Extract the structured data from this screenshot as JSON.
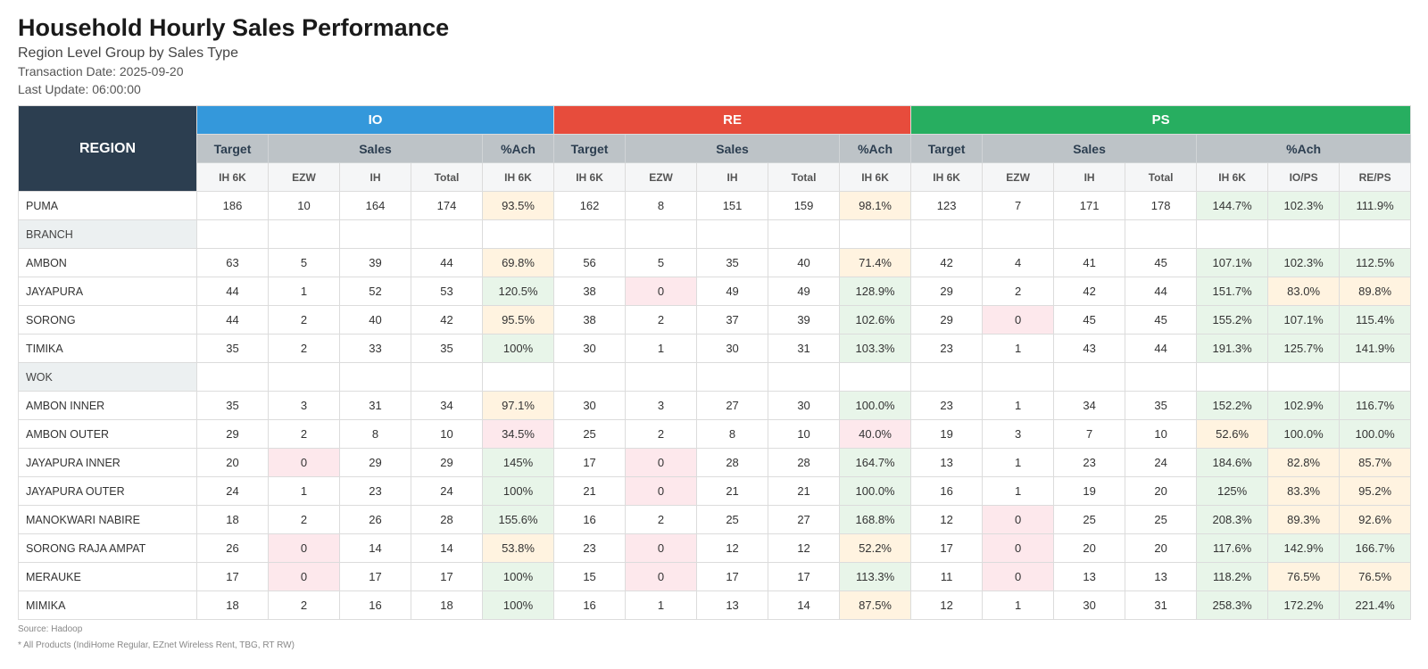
{
  "title": "Household Hourly Sales Performance",
  "subtitle": "Region Level Group by Sales Type",
  "transaction_date": "Transaction Date: 2025-09-20",
  "last_update": "Last Update: 06:00:00",
  "table": {
    "region_header": "REGION",
    "groups": [
      {
        "label": "IO",
        "color": "#3498db"
      },
      {
        "label": "RE",
        "color": "#e74c3c"
      },
      {
        "label": "PS",
        "color": "#27ae60"
      }
    ],
    "sub_headers": [
      "Target",
      "Sales",
      "%Ach"
    ],
    "col_headers": [
      "IH 6K",
      "EZW",
      "IH",
      "Total",
      "IH 6K",
      "IH 6K",
      "EZW",
      "IH",
      "Total",
      "IH 6K",
      "IH 6K",
      "EZW",
      "IH",
      "Total",
      "IH 6K",
      "IO/PS",
      "RE/PS"
    ],
    "rows": [
      {
        "type": "data",
        "name": "PUMA",
        "cells": [
          {
            "v": "186"
          },
          {
            "v": "10"
          },
          {
            "v": "164"
          },
          {
            "v": "174"
          },
          {
            "v": "93.5%",
            "c": "warn"
          },
          {
            "v": "162"
          },
          {
            "v": "8"
          },
          {
            "v": "151"
          },
          {
            "v": "159"
          },
          {
            "v": "98.1%",
            "c": "warn"
          },
          {
            "v": "123"
          },
          {
            "v": "7"
          },
          {
            "v": "171"
          },
          {
            "v": "178"
          },
          {
            "v": "144.7%",
            "c": "good"
          },
          {
            "v": "102.3%",
            "c": "good"
          },
          {
            "v": "111.9%",
            "c": "good"
          }
        ]
      },
      {
        "type": "section",
        "name": "BRANCH"
      },
      {
        "type": "data",
        "name": "AMBON",
        "cells": [
          {
            "v": "63"
          },
          {
            "v": "5"
          },
          {
            "v": "39"
          },
          {
            "v": "44"
          },
          {
            "v": "69.8%",
            "c": "warn"
          },
          {
            "v": "56"
          },
          {
            "v": "5"
          },
          {
            "v": "35"
          },
          {
            "v": "40"
          },
          {
            "v": "71.4%",
            "c": "warn"
          },
          {
            "v": "42"
          },
          {
            "v": "4"
          },
          {
            "v": "41"
          },
          {
            "v": "45"
          },
          {
            "v": "107.1%",
            "c": "good"
          },
          {
            "v": "102.3%",
            "c": "good"
          },
          {
            "v": "112.5%",
            "c": "good"
          }
        ]
      },
      {
        "type": "data",
        "name": "JAYAPURA",
        "cells": [
          {
            "v": "44"
          },
          {
            "v": "1"
          },
          {
            "v": "52"
          },
          {
            "v": "53"
          },
          {
            "v": "120.5%",
            "c": "good"
          },
          {
            "v": "38"
          },
          {
            "v": "0",
            "c": "zero"
          },
          {
            "v": "49"
          },
          {
            "v": "49"
          },
          {
            "v": "128.9%",
            "c": "good"
          },
          {
            "v": "29"
          },
          {
            "v": "2"
          },
          {
            "v": "42"
          },
          {
            "v": "44"
          },
          {
            "v": "151.7%",
            "c": "good"
          },
          {
            "v": "83.0%",
            "c": "warn"
          },
          {
            "v": "89.8%",
            "c": "warn"
          }
        ]
      },
      {
        "type": "data",
        "name": "SORONG",
        "cells": [
          {
            "v": "44"
          },
          {
            "v": "2"
          },
          {
            "v": "40"
          },
          {
            "v": "42"
          },
          {
            "v": "95.5%",
            "c": "warn"
          },
          {
            "v": "38"
          },
          {
            "v": "2"
          },
          {
            "v": "37"
          },
          {
            "v": "39"
          },
          {
            "v": "102.6%",
            "c": "good"
          },
          {
            "v": "29"
          },
          {
            "v": "0",
            "c": "zero"
          },
          {
            "v": "45"
          },
          {
            "v": "45"
          },
          {
            "v": "155.2%",
            "c": "good"
          },
          {
            "v": "107.1%",
            "c": "good"
          },
          {
            "v": "115.4%",
            "c": "good"
          }
        ]
      },
      {
        "type": "data",
        "name": "TIMIKA",
        "cells": [
          {
            "v": "35"
          },
          {
            "v": "2"
          },
          {
            "v": "33"
          },
          {
            "v": "35"
          },
          {
            "v": "100%",
            "c": "good"
          },
          {
            "v": "30"
          },
          {
            "v": "1"
          },
          {
            "v": "30"
          },
          {
            "v": "31"
          },
          {
            "v": "103.3%",
            "c": "good"
          },
          {
            "v": "23"
          },
          {
            "v": "1"
          },
          {
            "v": "43"
          },
          {
            "v": "44"
          },
          {
            "v": "191.3%",
            "c": "good"
          },
          {
            "v": "125.7%",
            "c": "good"
          },
          {
            "v": "141.9%",
            "c": "good"
          }
        ]
      },
      {
        "type": "section",
        "name": "WOK"
      },
      {
        "type": "data",
        "name": "AMBON INNER",
        "cells": [
          {
            "v": "35"
          },
          {
            "v": "3"
          },
          {
            "v": "31"
          },
          {
            "v": "34"
          },
          {
            "v": "97.1%",
            "c": "warn"
          },
          {
            "v": "30"
          },
          {
            "v": "3"
          },
          {
            "v": "27"
          },
          {
            "v": "30"
          },
          {
            "v": "100.0%",
            "c": "good"
          },
          {
            "v": "23"
          },
          {
            "v": "1"
          },
          {
            "v": "34"
          },
          {
            "v": "35"
          },
          {
            "v": "152.2%",
            "c": "good"
          },
          {
            "v": "102.9%",
            "c": "good"
          },
          {
            "v": "116.7%",
            "c": "good"
          }
        ]
      },
      {
        "type": "data",
        "name": "AMBON OUTER",
        "cells": [
          {
            "v": "29"
          },
          {
            "v": "2"
          },
          {
            "v": "8"
          },
          {
            "v": "10"
          },
          {
            "v": "34.5%",
            "c": "bad"
          },
          {
            "v": "25"
          },
          {
            "v": "2"
          },
          {
            "v": "8"
          },
          {
            "v": "10"
          },
          {
            "v": "40.0%",
            "c": "bad"
          },
          {
            "v": "19"
          },
          {
            "v": "3"
          },
          {
            "v": "7"
          },
          {
            "v": "10"
          },
          {
            "v": "52.6%",
            "c": "warn"
          },
          {
            "v": "100.0%",
            "c": "good"
          },
          {
            "v": "100.0%",
            "c": "good"
          }
        ]
      },
      {
        "type": "data",
        "name": "JAYAPURA INNER",
        "cells": [
          {
            "v": "20"
          },
          {
            "v": "0",
            "c": "zero"
          },
          {
            "v": "29"
          },
          {
            "v": "29"
          },
          {
            "v": "145%",
            "c": "good"
          },
          {
            "v": "17"
          },
          {
            "v": "0",
            "c": "zero"
          },
          {
            "v": "28"
          },
          {
            "v": "28"
          },
          {
            "v": "164.7%",
            "c": "good"
          },
          {
            "v": "13"
          },
          {
            "v": "1"
          },
          {
            "v": "23"
          },
          {
            "v": "24"
          },
          {
            "v": "184.6%",
            "c": "good"
          },
          {
            "v": "82.8%",
            "c": "warn"
          },
          {
            "v": "85.7%",
            "c": "warn"
          }
        ]
      },
      {
        "type": "data",
        "name": "JAYAPURA OUTER",
        "cells": [
          {
            "v": "24"
          },
          {
            "v": "1"
          },
          {
            "v": "23"
          },
          {
            "v": "24"
          },
          {
            "v": "100%",
            "c": "good"
          },
          {
            "v": "21"
          },
          {
            "v": "0",
            "c": "zero"
          },
          {
            "v": "21"
          },
          {
            "v": "21"
          },
          {
            "v": "100.0%",
            "c": "good"
          },
          {
            "v": "16"
          },
          {
            "v": "1"
          },
          {
            "v": "19"
          },
          {
            "v": "20"
          },
          {
            "v": "125%",
            "c": "good"
          },
          {
            "v": "83.3%",
            "c": "warn"
          },
          {
            "v": "95.2%",
            "c": "warn"
          }
        ]
      },
      {
        "type": "data",
        "name": "MANOKWARI NABIRE",
        "cells": [
          {
            "v": "18"
          },
          {
            "v": "2"
          },
          {
            "v": "26"
          },
          {
            "v": "28"
          },
          {
            "v": "155.6%",
            "c": "good"
          },
          {
            "v": "16"
          },
          {
            "v": "2"
          },
          {
            "v": "25"
          },
          {
            "v": "27"
          },
          {
            "v": "168.8%",
            "c": "good"
          },
          {
            "v": "12"
          },
          {
            "v": "0",
            "c": "zero"
          },
          {
            "v": "25"
          },
          {
            "v": "25"
          },
          {
            "v": "208.3%",
            "c": "good"
          },
          {
            "v": "89.3%",
            "c": "warn"
          },
          {
            "v": "92.6%",
            "c": "warn"
          }
        ]
      },
      {
        "type": "data",
        "name": "SORONG RAJA AMPAT",
        "cells": [
          {
            "v": "26"
          },
          {
            "v": "0",
            "c": "zero"
          },
          {
            "v": "14"
          },
          {
            "v": "14"
          },
          {
            "v": "53.8%",
            "c": "warn"
          },
          {
            "v": "23"
          },
          {
            "v": "0",
            "c": "zero"
          },
          {
            "v": "12"
          },
          {
            "v": "12"
          },
          {
            "v": "52.2%",
            "c": "warn"
          },
          {
            "v": "17"
          },
          {
            "v": "0",
            "c": "zero"
          },
          {
            "v": "20"
          },
          {
            "v": "20"
          },
          {
            "v": "117.6%",
            "c": "good"
          },
          {
            "v": "142.9%",
            "c": "good"
          },
          {
            "v": "166.7%",
            "c": "good"
          }
        ]
      },
      {
        "type": "data",
        "name": "MERAUKE",
        "cells": [
          {
            "v": "17"
          },
          {
            "v": "0",
            "c": "zero"
          },
          {
            "v": "17"
          },
          {
            "v": "17"
          },
          {
            "v": "100%",
            "c": "good"
          },
          {
            "v": "15"
          },
          {
            "v": "0",
            "c": "zero"
          },
          {
            "v": "17"
          },
          {
            "v": "17"
          },
          {
            "v": "113.3%",
            "c": "good"
          },
          {
            "v": "11"
          },
          {
            "v": "0",
            "c": "zero"
          },
          {
            "v": "13"
          },
          {
            "v": "13"
          },
          {
            "v": "118.2%",
            "c": "good"
          },
          {
            "v": "76.5%",
            "c": "warn"
          },
          {
            "v": "76.5%",
            "c": "warn"
          }
        ]
      },
      {
        "type": "data",
        "name": "MIMIKA",
        "cells": [
          {
            "v": "18"
          },
          {
            "v": "2"
          },
          {
            "v": "16"
          },
          {
            "v": "18"
          },
          {
            "v": "100%",
            "c": "good"
          },
          {
            "v": "16"
          },
          {
            "v": "1"
          },
          {
            "v": "13"
          },
          {
            "v": "14"
          },
          {
            "v": "87.5%",
            "c": "warn"
          },
          {
            "v": "12"
          },
          {
            "v": "1"
          },
          {
            "v": "30"
          },
          {
            "v": "31"
          },
          {
            "v": "258.3%",
            "c": "good"
          },
          {
            "v": "172.2%",
            "c": "good"
          },
          {
            "v": "221.4%",
            "c": "good"
          }
        ]
      }
    ]
  },
  "footer": {
    "source": "Source: Hadoop",
    "note": "* All Products (IndiHome Regular, EZnet Wireless Rent, TBG, RT RW)"
  }
}
